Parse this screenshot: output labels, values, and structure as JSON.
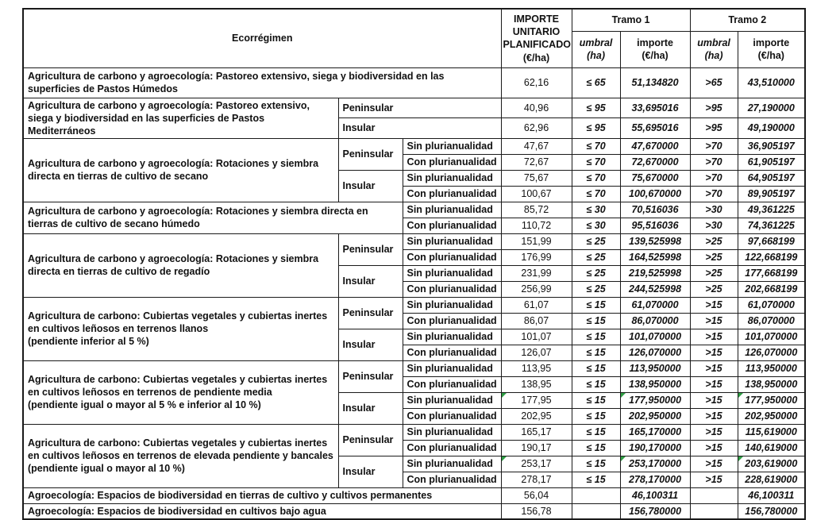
{
  "colors": {
    "border": "#1a1a1a",
    "text": "#111111",
    "error_flag_green": "#2f9e44",
    "background": "#ffffff"
  },
  "header": {
    "ecorregimen": "Ecorrégimen",
    "importe_unitario": "IMPORTE\nUNITARIO\nPLANIFICADO\n(€/ha)",
    "tramo1": "Tramo 1",
    "tramo2": "Tramo 2",
    "umbral": "umbral\n(ha)",
    "importe": "importe\n(€/ha)"
  },
  "rows": [
    {
      "cells": [
        {
          "t": "Agricultura de carbono y agroecología: Pastoreo extensivo, siega y biodiversidad en las superficies de Pastos Húmedos",
          "cls": "lbl",
          "cs": 3
        },
        {
          "t": "62,16",
          "cls": "unit"
        },
        {
          "t": "≤ 65",
          "cls": "umb"
        },
        {
          "t": "51,134820",
          "cls": "imp"
        },
        {
          "t": ">65",
          "cls": "umb"
        },
        {
          "t": "43,510000",
          "cls": "imp"
        }
      ]
    },
    {
      "cells": [
        {
          "t": "Agricultura de carbono y agroecología: Pastoreo extensivo, siega y biodiversidad en las superficies de Pastos Mediterráneos",
          "cls": "lbl",
          "rs": 2
        },
        {
          "t": "Peninsular",
          "cls": "reg",
          "cs": 2
        },
        {
          "t": "40,96",
          "cls": "unit"
        },
        {
          "t": "≤ 95",
          "cls": "umb"
        },
        {
          "t": "33,695016",
          "cls": "imp"
        },
        {
          "t": ">95",
          "cls": "umb"
        },
        {
          "t": "27,190000",
          "cls": "imp"
        }
      ]
    },
    {
      "cells": [
        {
          "t": "Insular",
          "cls": "reg",
          "cs": 2
        },
        {
          "t": "62,96",
          "cls": "unit"
        },
        {
          "t": "≤ 95",
          "cls": "umb"
        },
        {
          "t": "55,695016",
          "cls": "imp"
        },
        {
          "t": ">95",
          "cls": "umb"
        },
        {
          "t": "49,190000",
          "cls": "imp"
        }
      ]
    },
    {
      "cells": [
        {
          "t": "Agricultura de carbono y agroecología: Rotaciones y siembra directa en tierras de cultivo de secano",
          "cls": "lbl",
          "rs": 4
        },
        {
          "t": "Peninsular",
          "cls": "reg",
          "rs": 2
        },
        {
          "t": "Sin plurianualidad",
          "cls": "plu"
        },
        {
          "t": "47,67",
          "cls": "unit"
        },
        {
          "t": "≤ 70",
          "cls": "umb"
        },
        {
          "t": "47,670000",
          "cls": "imp"
        },
        {
          "t": ">70",
          "cls": "umb"
        },
        {
          "t": "36,905197",
          "cls": "imp"
        }
      ]
    },
    {
      "cells": [
        {
          "t": "Con plurianualidad",
          "cls": "plu"
        },
        {
          "t": "72,67",
          "cls": "unit"
        },
        {
          "t": "≤ 70",
          "cls": "umb"
        },
        {
          "t": "72,670000",
          "cls": "imp"
        },
        {
          "t": ">70",
          "cls": "umb"
        },
        {
          "t": "61,905197",
          "cls": "imp"
        }
      ]
    },
    {
      "cells": [
        {
          "t": "Insular",
          "cls": "reg",
          "rs": 2
        },
        {
          "t": "Sin plurianualidad",
          "cls": "plu"
        },
        {
          "t": "75,67",
          "cls": "unit"
        },
        {
          "t": "≤ 70",
          "cls": "umb"
        },
        {
          "t": "75,670000",
          "cls": "imp"
        },
        {
          "t": ">70",
          "cls": "umb"
        },
        {
          "t": "64,905197",
          "cls": "imp"
        }
      ]
    },
    {
      "cells": [
        {
          "t": "Con plurianualidad",
          "cls": "plu"
        },
        {
          "t": "100,67",
          "cls": "unit"
        },
        {
          "t": "≤ 70",
          "cls": "umb"
        },
        {
          "t": "100,670000",
          "cls": "imp"
        },
        {
          "t": ">70",
          "cls": "umb"
        },
        {
          "t": "89,905197",
          "cls": "imp"
        }
      ]
    },
    {
      "cells": [
        {
          "t": "Agricultura de carbono y agroecología: Rotaciones y siembra directa en tierras de cultivo de secano húmedo",
          "cls": "lbl",
          "cs": 2,
          "rs": 2
        },
        {
          "t": "Sin plurianualidad",
          "cls": "plu"
        },
        {
          "t": "85,72",
          "cls": "unit"
        },
        {
          "t": "≤ 30",
          "cls": "umb"
        },
        {
          "t": "70,516036",
          "cls": "imp"
        },
        {
          "t": ">30",
          "cls": "umb"
        },
        {
          "t": "49,361225",
          "cls": "imp"
        }
      ]
    },
    {
      "cells": [
        {
          "t": "Con plurianualidad",
          "cls": "plu"
        },
        {
          "t": "110,72",
          "cls": "unit"
        },
        {
          "t": "≤ 30",
          "cls": "umb"
        },
        {
          "t": "95,516036",
          "cls": "imp"
        },
        {
          "t": ">30",
          "cls": "umb"
        },
        {
          "t": "74,361225",
          "cls": "imp"
        }
      ]
    },
    {
      "cells": [
        {
          "t": "Agricultura de carbono y agroecología: Rotaciones y siembra directa en tierras de cultivo de regadío",
          "cls": "lbl",
          "rs": 4
        },
        {
          "t": "Peninsular",
          "cls": "reg",
          "rs": 2
        },
        {
          "t": "Sin plurianualidad",
          "cls": "plu"
        },
        {
          "t": "151,99",
          "cls": "unit"
        },
        {
          "t": "≤ 25",
          "cls": "umb"
        },
        {
          "t": "139,525998",
          "cls": "imp"
        },
        {
          "t": ">25",
          "cls": "umb"
        },
        {
          "t": "97,668199",
          "cls": "imp"
        }
      ]
    },
    {
      "cells": [
        {
          "t": "Con plurianualidad",
          "cls": "plu"
        },
        {
          "t": "176,99",
          "cls": "unit"
        },
        {
          "t": "≤ 25",
          "cls": "umb"
        },
        {
          "t": "164,525998",
          "cls": "imp"
        },
        {
          "t": ">25",
          "cls": "umb"
        },
        {
          "t": "122,668199",
          "cls": "imp"
        }
      ]
    },
    {
      "cells": [
        {
          "t": "Insular",
          "cls": "reg",
          "rs": 2
        },
        {
          "t": "Sin plurianualidad",
          "cls": "plu"
        },
        {
          "t": "231,99",
          "cls": "unit"
        },
        {
          "t": "≤ 25",
          "cls": "umb"
        },
        {
          "t": "219,525998",
          "cls": "imp"
        },
        {
          "t": ">25",
          "cls": "umb"
        },
        {
          "t": "177,668199",
          "cls": "imp"
        }
      ]
    },
    {
      "cells": [
        {
          "t": "Con plurianualidad",
          "cls": "plu"
        },
        {
          "t": "256,99",
          "cls": "unit"
        },
        {
          "t": "≤ 25",
          "cls": "umb"
        },
        {
          "t": "244,525998",
          "cls": "imp"
        },
        {
          "t": ">25",
          "cls": "umb"
        },
        {
          "t": "202,668199",
          "cls": "imp"
        }
      ]
    },
    {
      "cells": [
        {
          "t": "Agricultura de carbono: Cubiertas vegetales y cubiertas inertes en cultivos leñosos en terrenos llanos\n(pendiente inferior al 5 %)",
          "cls": "lbl",
          "rs": 4
        },
        {
          "t": "Peninsular",
          "cls": "reg",
          "rs": 2
        },
        {
          "t": "Sin plurianualidad",
          "cls": "plu"
        },
        {
          "t": "61,07",
          "cls": "unit"
        },
        {
          "t": "≤ 15",
          "cls": "umb"
        },
        {
          "t": "61,070000",
          "cls": "imp"
        },
        {
          "t": ">15",
          "cls": "umb"
        },
        {
          "t": "61,070000",
          "cls": "imp"
        }
      ]
    },
    {
      "cells": [
        {
          "t": "Con plurianualidad",
          "cls": "plu"
        },
        {
          "t": "86,07",
          "cls": "unit"
        },
        {
          "t": "≤ 15",
          "cls": "umb"
        },
        {
          "t": "86,070000",
          "cls": "imp"
        },
        {
          "t": ">15",
          "cls": "umb"
        },
        {
          "t": "86,070000",
          "cls": "imp"
        }
      ]
    },
    {
      "cells": [
        {
          "t": "Insular",
          "cls": "reg",
          "rs": 2
        },
        {
          "t": "Sin plurianualidad",
          "cls": "plu"
        },
        {
          "t": "101,07",
          "cls": "unit"
        },
        {
          "t": "≤ 15",
          "cls": "umb"
        },
        {
          "t": "101,070000",
          "cls": "imp"
        },
        {
          "t": ">15",
          "cls": "umb"
        },
        {
          "t": "101,070000",
          "cls": "imp"
        }
      ]
    },
    {
      "cells": [
        {
          "t": "Con plurianualidad",
          "cls": "plu"
        },
        {
          "t": "126,07",
          "cls": "unit"
        },
        {
          "t": "≤ 15",
          "cls": "umb"
        },
        {
          "t": "126,070000",
          "cls": "imp"
        },
        {
          "t": ">15",
          "cls": "umb"
        },
        {
          "t": "126,070000",
          "cls": "imp"
        }
      ]
    },
    {
      "cells": [
        {
          "t": "Agricultura de carbono: Cubiertas vegetales y cubiertas inertes en cultivos leñosos en terrenos de pendiente media\n(pendiente igual o mayor al 5 % e inferior al 10 %)",
          "cls": "lbl",
          "rs": 4
        },
        {
          "t": "Peninsular",
          "cls": "reg",
          "rs": 2
        },
        {
          "t": "Sin plurianualidad",
          "cls": "plu"
        },
        {
          "t": "113,95",
          "cls": "unit"
        },
        {
          "t": "≤ 15",
          "cls": "umb"
        },
        {
          "t": "113,950000",
          "cls": "imp"
        },
        {
          "t": ">15",
          "cls": "umb"
        },
        {
          "t": "113,950000",
          "cls": "imp"
        }
      ]
    },
    {
      "cells": [
        {
          "t": "Con plurianualidad",
          "cls": "plu"
        },
        {
          "t": "138,95",
          "cls": "unit"
        },
        {
          "t": "≤ 15",
          "cls": "umb"
        },
        {
          "t": "138,950000",
          "cls": "imp"
        },
        {
          "t": ">15",
          "cls": "umb"
        },
        {
          "t": "138,950000",
          "cls": "imp"
        }
      ]
    },
    {
      "cells": [
        {
          "t": "Insular",
          "cls": "reg",
          "rs": 2
        },
        {
          "t": "Sin plurianualidad",
          "cls": "plu"
        },
        {
          "t": "177,95",
          "cls": "unit",
          "flag": true
        },
        {
          "t": "≤ 15",
          "cls": "umb"
        },
        {
          "t": "177,950000",
          "cls": "imp",
          "flag": true
        },
        {
          "t": ">15",
          "cls": "umb"
        },
        {
          "t": "177,950000",
          "cls": "imp",
          "flag": true
        }
      ]
    },
    {
      "cells": [
        {
          "t": "Con plurianualidad",
          "cls": "plu"
        },
        {
          "t": "202,95",
          "cls": "unit"
        },
        {
          "t": "≤ 15",
          "cls": "umb"
        },
        {
          "t": "202,950000",
          "cls": "imp"
        },
        {
          "t": ">15",
          "cls": "umb"
        },
        {
          "t": "202,950000",
          "cls": "imp"
        }
      ]
    },
    {
      "cells": [
        {
          "t": "Agricultura de carbono: Cubiertas vegetales y cubiertas inertes en cultivos leñosos en terrenos de elevada pendiente y bancales\n(pendiente igual o mayor al 10 %)",
          "cls": "lbl",
          "rs": 4
        },
        {
          "t": "Peninsular",
          "cls": "reg",
          "rs": 2
        },
        {
          "t": "Sin plurianualidad",
          "cls": "plu"
        },
        {
          "t": "165,17",
          "cls": "unit"
        },
        {
          "t": "≤ 15",
          "cls": "umb"
        },
        {
          "t": "165,170000",
          "cls": "imp"
        },
        {
          "t": ">15",
          "cls": "umb"
        },
        {
          "t": "115,619000",
          "cls": "imp"
        }
      ]
    },
    {
      "cells": [
        {
          "t": "Con plurianualidad",
          "cls": "plu"
        },
        {
          "t": "190,17",
          "cls": "unit"
        },
        {
          "t": "≤ 15",
          "cls": "umb"
        },
        {
          "t": "190,170000",
          "cls": "imp"
        },
        {
          "t": ">15",
          "cls": "umb"
        },
        {
          "t": "140,619000",
          "cls": "imp"
        }
      ]
    },
    {
      "cells": [
        {
          "t": "Insular",
          "cls": "reg",
          "rs": 2
        },
        {
          "t": "Sin plurianualidad",
          "cls": "plu"
        },
        {
          "t": "253,17",
          "cls": "unit",
          "flag": true
        },
        {
          "t": "≤ 15",
          "cls": "umb"
        },
        {
          "t": "253,170000",
          "cls": "imp",
          "flag": true
        },
        {
          "t": ">15",
          "cls": "umb"
        },
        {
          "t": "203,619000",
          "cls": "imp",
          "flag": true
        }
      ]
    },
    {
      "cells": [
        {
          "t": "Con plurianualidad",
          "cls": "plu"
        },
        {
          "t": "278,17",
          "cls": "unit"
        },
        {
          "t": "≤ 15",
          "cls": "umb"
        },
        {
          "t": "278,170000",
          "cls": "imp"
        },
        {
          "t": ">15",
          "cls": "umb"
        },
        {
          "t": "228,619000",
          "cls": "imp"
        }
      ]
    },
    {
      "cells": [
        {
          "t": "Agroecología: Espacios de biodiversidad en tierras de cultivo y cultivos permanentes",
          "cls": "lbl",
          "cs": 3
        },
        {
          "t": "56,04",
          "cls": "unit"
        },
        {
          "t": "",
          "cls": "umb"
        },
        {
          "t": "46,100311",
          "cls": "imp"
        },
        {
          "t": "",
          "cls": "umb"
        },
        {
          "t": "46,100311",
          "cls": "imp"
        }
      ]
    },
    {
      "cells": [
        {
          "t": "Agroecología: Espacios de biodiversidad en cultivos bajo agua",
          "cls": "lbl",
          "cs": 3
        },
        {
          "t": "156,78",
          "cls": "unit"
        },
        {
          "t": "",
          "cls": "umb"
        },
        {
          "t": "156,780000",
          "cls": "imp"
        },
        {
          "t": "",
          "cls": "umb"
        },
        {
          "t": "156,780000",
          "cls": "imp"
        }
      ]
    }
  ]
}
